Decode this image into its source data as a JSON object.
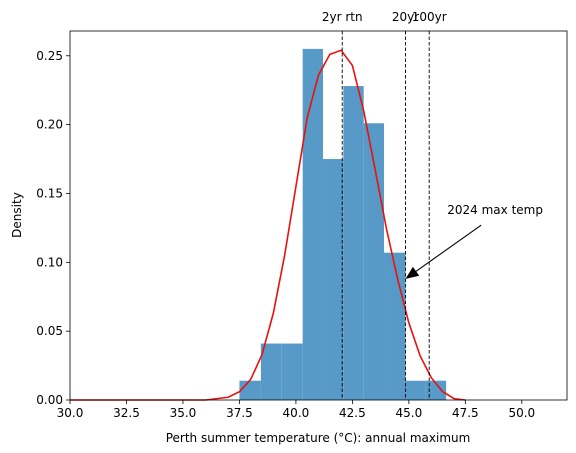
{
  "chart_data": {
    "type": "bar",
    "xlabel": "Perth summer temperature (°C): annual maximum",
    "ylabel": "Density",
    "xlim": [
      30,
      52
    ],
    "ylim": [
      0,
      0.268
    ],
    "xticks": [
      30.0,
      32.5,
      35.0,
      37.5,
      40.0,
      42.5,
      45.0,
      47.5,
      50.0
    ],
    "xtick_labels": [
      "30.0",
      "32.5",
      "35.0",
      "37.5",
      "40.0",
      "42.5",
      "45.0",
      "47.5",
      "50.0"
    ],
    "yticks": [
      0.0,
      0.05,
      0.1,
      0.15,
      0.2,
      0.25
    ],
    "ytick_labels": [
      "0.00",
      "0.05",
      "0.10",
      "0.15",
      "0.20",
      "0.25"
    ],
    "grid": false,
    "histogram": {
      "color": "#5799c7",
      "bins": [
        {
          "x0": 37.5,
          "x1": 38.45,
          "density": 0.014
        },
        {
          "x0": 38.45,
          "x1": 39.35,
          "density": 0.041
        },
        {
          "x0": 39.35,
          "x1": 40.3,
          "density": 0.041
        },
        {
          "x0": 40.3,
          "x1": 41.2,
          "density": 0.255
        },
        {
          "x0": 41.2,
          "x1": 42.1,
          "density": 0.175
        },
        {
          "x0": 42.1,
          "x1": 43.0,
          "density": 0.228
        },
        {
          "x0": 43.0,
          "x1": 43.9,
          "density": 0.201
        },
        {
          "x0": 43.9,
          "x1": 44.85,
          "density": 0.107
        },
        {
          "x0": 44.85,
          "x1": 45.75,
          "density": 0.014
        },
        {
          "x0": 45.75,
          "x1": 46.65,
          "density": 0.014
        }
      ]
    },
    "fit_curve": {
      "type": "line",
      "color": "#e8120c",
      "x": [
        30.0,
        31.0,
        32.0,
        33.0,
        34.0,
        35.0,
        36.0,
        37.0,
        37.5,
        38.0,
        38.5,
        39.0,
        39.5,
        40.0,
        40.5,
        41.0,
        41.5,
        42.0,
        42.5,
        43.0,
        43.5,
        44.0,
        44.5,
        45.0,
        45.5,
        46.0,
        46.5,
        47.0,
        47.5
      ],
      "y": [
        0.0,
        0.0,
        0.0,
        0.0,
        0.0,
        0.0,
        0.0,
        0.002,
        0.006,
        0.015,
        0.033,
        0.063,
        0.105,
        0.155,
        0.205,
        0.236,
        0.251,
        0.254,
        0.243,
        0.21,
        0.168,
        0.125,
        0.088,
        0.056,
        0.032,
        0.016,
        0.006,
        0.001,
        0.0
      ]
    },
    "return_levels": [
      {
        "label": "2yr rtn",
        "x": 42.05
      },
      {
        "label": "20yr",
        "x": 44.85
      },
      {
        "label": "100yr",
        "x": 45.9
      }
    ],
    "annotation": {
      "text": "2024 max temp",
      "text_x": 46.7,
      "text_y": 0.135,
      "arrow_from_x": 48.2,
      "arrow_from_y": 0.127,
      "arrow_to_x": 44.85,
      "arrow_to_y": 0.088
    }
  }
}
